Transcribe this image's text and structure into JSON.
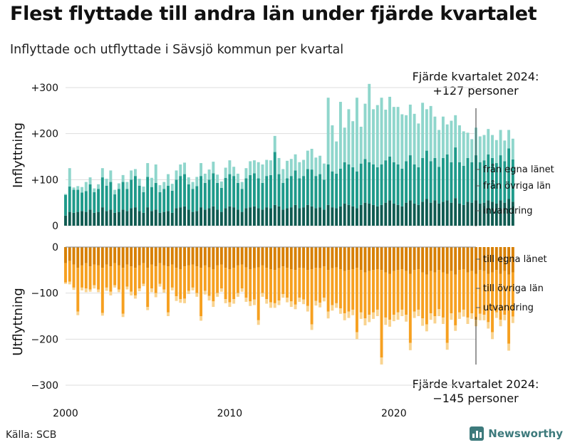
{
  "title": "Flest flyttade till andra län under fjärde kvartalet",
  "subtitle": "Inflyttade och utflyttade i Sävsjö kommun per kvartal",
  "source": "Källa: SCB",
  "brand": "Newsworthy",
  "annotation_top": {
    "line1": "Fjärde kvartalet 2024:",
    "line2": "+127 personer"
  },
  "annotation_bottom": {
    "line1": "Fjärde kvartalet 2024:",
    "line2": "−145 personer"
  },
  "colors": {
    "in_own": "#0f5b51",
    "in_other": "#1e9a8a",
    "in_emig": "#8fd6cc",
    "out_own": "#d77f00",
    "out_other": "#f6a020",
    "out_emig": "#f9d38f",
    "grid": "#dddddd"
  },
  "chart_data": [
    {
      "type": "bar",
      "stacked": true,
      "panel": "inflyttning",
      "ylabel": "Inflyttning",
      "ylim": [
        0,
        300
      ],
      "yticks": [
        {
          "value": 0,
          "label": "0"
        },
        {
          "value": 100,
          "label": "+100"
        },
        {
          "value": 200,
          "label": "+200"
        },
        {
          "value": 300,
          "label": "+300"
        }
      ],
      "x_start": 2000.0,
      "x_step": 0.25,
      "xticks": [
        "2000",
        "2010",
        "2020"
      ],
      "series": [
        {
          "name": "från egna länet",
          "values": [
            22,
            30,
            28,
            30,
            32,
            30,
            35,
            28,
            30,
            40,
            32,
            35,
            28,
            30,
            35,
            32,
            38,
            40,
            32,
            28,
            40,
            32,
            35,
            28,
            30,
            32,
            28,
            38,
            40,
            42,
            35,
            30,
            32,
            40,
            35,
            38,
            42,
            35,
            30,
            38,
            42,
            40,
            35,
            30,
            38,
            40,
            42,
            38,
            35,
            40,
            38,
            45,
            42,
            35,
            38,
            40,
            45,
            38,
            40,
            45,
            42,
            38,
            40,
            35,
            45,
            40,
            38,
            42,
            48,
            45,
            42,
            38,
            45,
            50,
            48,
            45,
            42,
            45,
            50,
            55,
            48,
            45,
            42,
            50,
            55,
            48,
            45,
            52,
            58,
            50,
            55,
            48,
            52,
            55,
            50,
            60,
            48,
            45,
            52,
            50,
            55,
            48,
            50,
            55,
            52,
            48,
            55,
            50,
            58,
            52
          ]
        },
        {
          "name": "från övriga län",
          "values": [
            45,
            55,
            50,
            48,
            40,
            45,
            55,
            45,
            50,
            65,
            55,
            60,
            40,
            50,
            60,
            48,
            62,
            68,
            55,
            45,
            66,
            52,
            58,
            45,
            50,
            55,
            48,
            62,
            68,
            70,
            55,
            50,
            54,
            68,
            58,
            62,
            72,
            58,
            52,
            66,
            70,
            68,
            58,
            50,
            65,
            70,
            72,
            65,
            58,
            68,
            72,
            115,
            70,
            58,
            65,
            68,
            75,
            65,
            68,
            78,
            80,
            70,
            72,
            65,
            88,
            78,
            75,
            82,
            90,
            88,
            85,
            80,
            90,
            95,
            90,
            88,
            85,
            88,
            92,
            95,
            90,
            88,
            82,
            90,
            98,
            85,
            82,
            95,
            105,
            90,
            92,
            80,
            95,
            100,
            88,
            110,
            90,
            85,
            95,
            88,
            98,
            90,
            92,
            100,
            95,
            88,
            98,
            90,
            110,
            92
          ]
        },
        {
          "name": "invandring",
          "values": [
            2,
            40,
            5,
            8,
            12,
            20,
            15,
            8,
            10,
            20,
            15,
            25,
            10,
            12,
            15,
            15,
            20,
            15,
            15,
            12,
            30,
            20,
            40,
            15,
            15,
            25,
            15,
            20,
            25,
            25,
            15,
            15,
            20,
            28,
            20,
            22,
            25,
            18,
            14,
            22,
            30,
            20,
            20,
            15,
            22,
            30,
            28,
            35,
            40,
            35,
            32,
            35,
            35,
            30,
            38,
            37,
            35,
            35,
            35,
            40,
            45,
            40,
            40,
            35,
            145,
            100,
            70,
            145,
            75,
            120,
            100,
            160,
            80,
            120,
            170,
            120,
            135,
            145,
            110,
            130,
            120,
            125,
            118,
            100,
            110,
            110,
            95,
            120,
            90,
            120,
            90,
            80,
            90,
            65,
            90,
            70,
            80,
            75,
            55,
            50,
            60,
            56,
            55,
            55,
            50,
            50,
            55,
            45,
            40,
            45
          ]
        }
      ]
    },
    {
      "type": "bar",
      "stacked": true,
      "panel": "utflyttning",
      "ylabel": "Utflyttning",
      "ylim": [
        -300,
        0
      ],
      "yticks": [
        {
          "value": 0,
          "label": "0"
        },
        {
          "value": -100,
          "label": "−100"
        },
        {
          "value": -200,
          "label": "−200"
        },
        {
          "value": -300,
          "label": "−300"
        }
      ],
      "x_start": 2000.0,
      "x_step": 0.25,
      "xticks": [
        "2000",
        "2010",
        "2020"
      ],
      "series": [
        {
          "name": "till egna länet",
          "values": [
            -35,
            -30,
            -38,
            -45,
            -40,
            -35,
            -42,
            -38,
            -40,
            -45,
            -38,
            -42,
            -35,
            -40,
            -45,
            -38,
            -42,
            -45,
            -40,
            -35,
            -45,
            -38,
            -42,
            -35,
            -40,
            -42,
            -38,
            -45,
            -48,
            -42,
            -40,
            -38,
            -42,
            -45,
            -40,
            -44,
            -48,
            -40,
            -38,
            -45,
            -48,
            -45,
            -40,
            -38,
            -44,
            -48,
            -46,
            -44,
            -40,
            -45,
            -48,
            -50,
            -46,
            -42,
            -45,
            -48,
            -50,
            -45,
            -46,
            -50,
            -48,
            -45,
            -46,
            -42,
            -50,
            -46,
            -44,
            -48,
            -52,
            -50,
            -48,
            -45,
            -50,
            -55,
            -52,
            -50,
            -48,
            -50,
            -55,
            -58,
            -52,
            -50,
            -48,
            -52,
            -58,
            -50,
            -48,
            -55,
            -60,
            -52,
            -55,
            -50,
            -55,
            -58,
            -52,
            -60,
            -50,
            -48,
            -55,
            -52,
            -58,
            -50,
            -52,
            -58,
            -55,
            -50,
            -58,
            -52,
            -60,
            -55
          ]
        },
        {
          "name": "till övriga län",
          "values": [
            -42,
            -45,
            -50,
            -95,
            -48,
            -55,
            -50,
            -45,
            -52,
            -98,
            -50,
            -55,
            -48,
            -52,
            -100,
            -48,
            -55,
            -60,
            -50,
            -45,
            -85,
            -52,
            -58,
            -45,
            -52,
            -100,
            -50,
            -62,
            -65,
            -70,
            -55,
            -50,
            -58,
            -105,
            -55,
            -62,
            -70,
            -60,
            -52,
            -68,
            -72,
            -68,
            -60,
            -52,
            -66,
            -70,
            -68,
            -115,
            -60,
            -68,
            -72,
            -72,
            -70,
            -60,
            -65,
            -70,
            -75,
            -65,
            -68,
            -78,
            -120,
            -72,
            -75,
            -68,
            -90,
            -80,
            -78,
            -85,
            -92,
            -90,
            -88,
            -140,
            -92,
            -100,
            -95,
            -92,
            -88,
            -190,
            -98,
            -100,
            -95,
            -92,
            -88,
            -95,
            -150,
            -90,
            -88,
            -100,
            -108,
            -92,
            -95,
            -85,
            -98,
            -150,
            -92,
            -110,
            -92,
            -88,
            -98,
            -92,
            -100,
            -95,
            -95,
            -105,
            -130,
            -92,
            -100,
            -95,
            -150,
            -96
          ]
        },
        {
          "name": "utvandring",
          "values": [
            -3,
            -6,
            -5,
            -8,
            -6,
            -8,
            -5,
            -7,
            -6,
            -6,
            -7,
            -8,
            -5,
            -6,
            -7,
            -6,
            -8,
            -7,
            -6,
            -5,
            -7,
            -8,
            -9,
            -6,
            -7,
            -8,
            -6,
            -10,
            -8,
            -10,
            -7,
            -6,
            -8,
            -10,
            -8,
            -10,
            -12,
            -8,
            -7,
            -9,
            -10,
            -10,
            -8,
            -7,
            -9,
            -10,
            -12,
            -10,
            -8,
            -10,
            -12,
            -10,
            -10,
            -8,
            -10,
            -12,
            -10,
            -9,
            -10,
            -12,
            -12,
            -10,
            -10,
            -8,
            -15,
            -12,
            -10,
            -12,
            -15,
            -14,
            -12,
            -15,
            -14,
            -15,
            -16,
            -14,
            -14,
            -15,
            -16,
            -15,
            -14,
            -16,
            -14,
            -15,
            -16,
            -14,
            -14,
            -16,
            -15,
            -14,
            -16,
            -15,
            -14,
            -15,
            -14,
            -12,
            -14,
            -15,
            -14,
            -12,
            -14,
            -14,
            -12,
            -14,
            -15,
            -12,
            -14,
            -12,
            -15,
            -14
          ]
        }
      ],
      "value_labels": [
        "till egna länet",
        "till övriga län",
        "utvandring"
      ]
    }
  ]
}
